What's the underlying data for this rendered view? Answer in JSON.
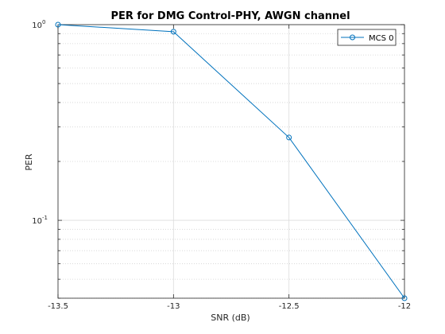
{
  "chart_data": {
    "type": "line",
    "title": "PER for DMG Control-PHY, AWGN channel",
    "xlabel": "SNR (dB)",
    "ylabel": "PER",
    "x": [
      -13.5,
      -13,
      -12.5,
      -12
    ],
    "x_ticks": [
      -13.5,
      -13,
      -12.5,
      -12
    ],
    "x_tick_labels": [
      "-13.5",
      "-13",
      "-12.5",
      "-12"
    ],
    "xlim": [
      -13.5,
      -12
    ],
    "y_scale": "log",
    "ylim": [
      0.04,
      1
    ],
    "y_ticks": [
      {
        "value": 1,
        "base": "10",
        "exp": "0"
      },
      {
        "value": 0.1,
        "base": "10",
        "exp": "-1"
      }
    ],
    "grid": true,
    "legend_position": "top-right",
    "series": [
      {
        "name": "MCS 0",
        "values": [
          1.0,
          0.92,
          0.265,
          0.04
        ],
        "color": "#0072BD",
        "marker": "circle"
      }
    ]
  }
}
